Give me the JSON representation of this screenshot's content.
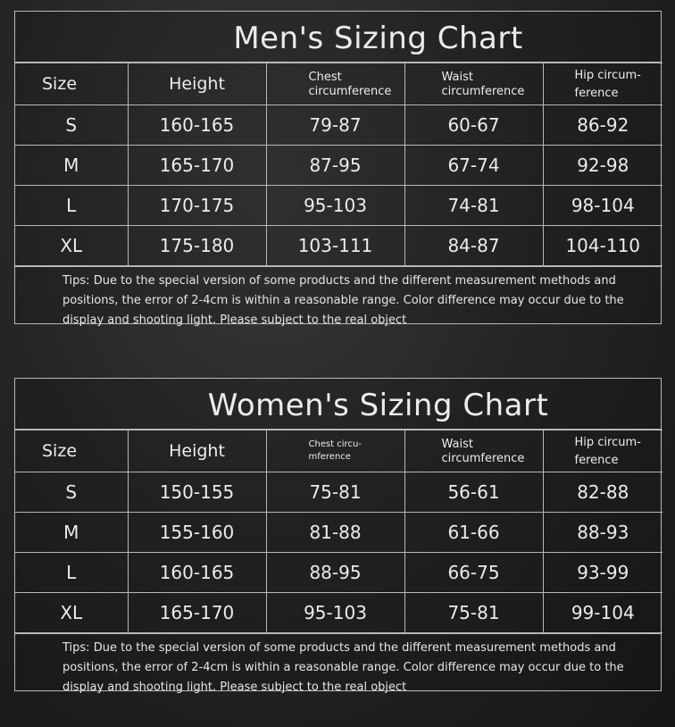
{
  "charts": [
    {
      "title": "Men's Sizing Chart",
      "headers": [
        "Size",
        "Height",
        "Chest circumference",
        "Waist circumference",
        "Hip circum-ference"
      ],
      "header_lines": [
        [
          "Size"
        ],
        [
          "Height"
        ],
        [
          "Chest",
          "circumference"
        ],
        [
          "Waist",
          "circumference"
        ],
        [
          "Hip circum-",
          "ference"
        ]
      ],
      "rows": [
        [
          "S",
          "160-165",
          "79-87",
          "60-67",
          "86-92"
        ],
        [
          "M",
          "165-170",
          "87-95",
          "67-74",
          "92-98"
        ],
        [
          "L",
          "170-175",
          "95-103",
          "74-81",
          "98-104"
        ],
        [
          "XL",
          "175-180",
          "103-111",
          "84-87",
          "104-110"
        ]
      ],
      "tips": "Tips: Due to the special version of some products and the different measurement methods and positions, the error of 2-4cm is within a reasonable range. Color difference may occur due to the display and shooting light. Please subject to the real object"
    },
    {
      "title": "Women's Sizing Chart",
      "headers": [
        "Size",
        "Height",
        "Chest circu-mference",
        "Waist circumference",
        "Hip circum-ference"
      ],
      "header_lines": [
        [
          "Size"
        ],
        [
          "Height"
        ],
        [
          "Chest circu-",
          "mference"
        ],
        [
          "Waist",
          "circumference"
        ],
        [
          "Hip circum-",
          "ference"
        ]
      ],
      "rows": [
        [
          "S",
          "150-155",
          "75-81",
          "56-61",
          "82-88"
        ],
        [
          "M",
          "155-160",
          "81-88",
          "61-66",
          "88-93"
        ],
        [
          "L",
          "160-165",
          "88-95",
          "66-75",
          "93-99"
        ],
        [
          "XL",
          "165-170",
          "95-103",
          "75-81",
          "99-104"
        ]
      ],
      "tips": "Tips: Due to the special version of some products and the different measurement methods and positions, the error of 2-4cm is within a reasonable range. Color difference may occur due to the display and shooting light. Please subject to the real object"
    }
  ]
}
